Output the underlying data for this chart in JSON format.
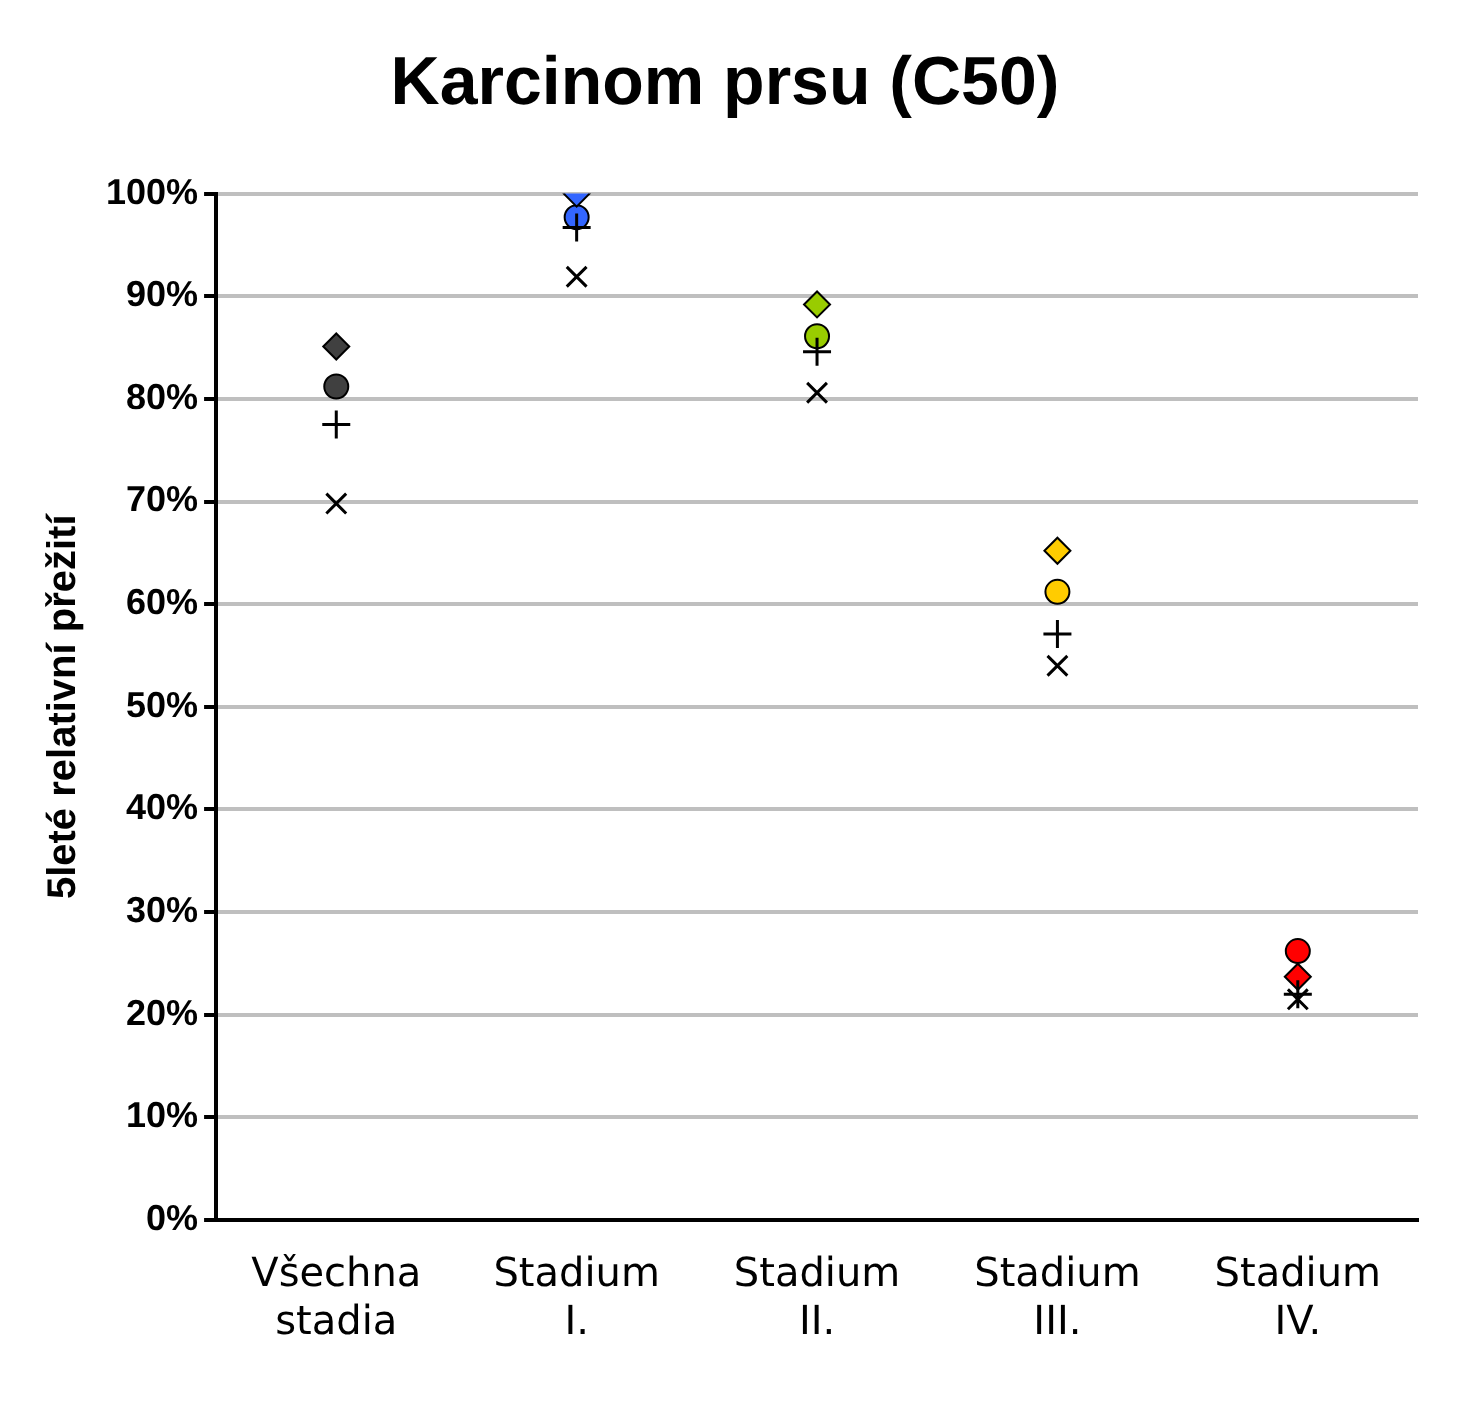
{
  "chart_data": {
    "type": "scatter",
    "title": "Karcinom prsu (C50)",
    "ylabel": "5leté relativní přežití",
    "categories": [
      "Všechna stadia",
      "Stadium I.",
      "Stadium II.",
      "Stadium III.",
      "Stadium IV."
    ],
    "series": [
      {
        "marker": "diamond",
        "color": "#404040",
        "colors": [
          "#404040",
          "#3366ff",
          "#99cc00",
          "#ffcc00",
          "#ff0000"
        ],
        "values": [
          85.1,
          100,
          89.2,
          65.2,
          23.7
        ]
      },
      {
        "marker": "circle",
        "color": "#404040",
        "colors": [
          "#404040",
          "#3366ff",
          "#99cc00",
          "#ffcc00",
          "#ff0000"
        ],
        "values": [
          81.2,
          97.7,
          86.1,
          61.2,
          26.2
        ]
      },
      {
        "marker": "cross",
        "color": "#000000",
        "values": [
          77.5,
          96.7,
          84.6,
          57.1,
          22.0
        ]
      },
      {
        "marker": "x",
        "color": "#000000",
        "values": [
          69.8,
          91.9,
          80.6,
          54.0,
          21.5
        ]
      }
    ],
    "ylim": [
      0,
      100
    ],
    "yticks": [
      {
        "value": 0,
        "label": "0%"
      },
      {
        "value": 10,
        "label": "10%"
      },
      {
        "value": 20,
        "label": "20%"
      },
      {
        "value": 30,
        "label": "30%"
      },
      {
        "value": 40,
        "label": "40%"
      },
      {
        "value": 50,
        "label": "50%"
      },
      {
        "value": 60,
        "label": "60%"
      },
      {
        "value": 70,
        "label": "70%"
      },
      {
        "value": 80,
        "label": "80%"
      },
      {
        "value": 90,
        "label": "90%"
      },
      {
        "value": 100,
        "label": "100%"
      }
    ],
    "grid": "y",
    "legend": false
  }
}
